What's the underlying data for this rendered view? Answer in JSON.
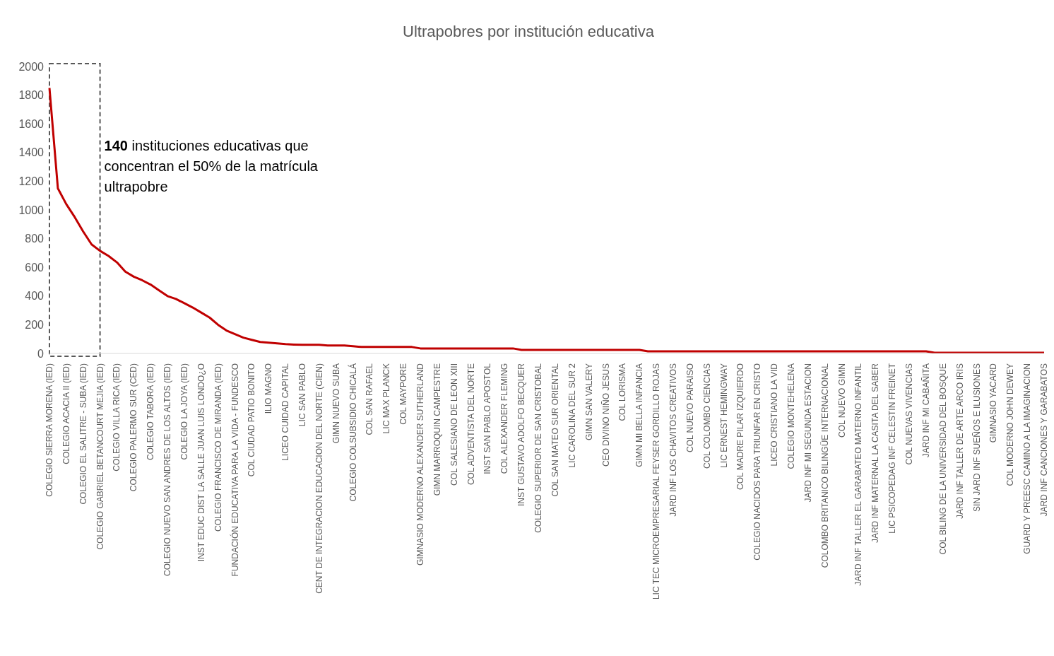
{
  "chart_data": {
    "type": "line",
    "title": "Ultrapobres por institución educativa",
    "categories": [
      "COLEGIO SIERRA MORENA (IED)",
      null,
      "COLEGIO ACACIA II (IED)",
      null,
      "COLEGIO EL SALITRE - SUBA (IED)",
      null,
      "COLEGIO GABRIEL BETANCOURT MEJIA (IED)",
      null,
      "COLEGIO VILLA RICA (IED)",
      null,
      "COLEGIO PALERMO SUR (CED)",
      null,
      "COLEGIO TABORA (IED)",
      null,
      "COLEGIO NUEVO SAN ANDRES DE LOS ALTOS (IED)",
      null,
      "COLEGIO LA JOYA (IED)",
      null,
      "INST EDUC DIST LA SALLE JUAN LUIS LONDO¿O",
      null,
      "COLEGIO FRANCISCO DE MIRANDA (IED)",
      null,
      "FUNDACIÓN EDUCATIVA PARA LA VIDA - FUNDESCO",
      null,
      "COL CIUDAD PATIO BONITO",
      null,
      "ILIO MAGNO",
      null,
      "LICEO CUIDAD CAPITAL",
      null,
      "LIC SAN PABLO",
      null,
      "CENT DE INTEGRACION EDUCACION DEL NORTE (CIEN)",
      null,
      "GIMN NUEVO SUBA",
      null,
      "COLEGIO COLSUBSIDIO CHICALÁ",
      null,
      "COL SAN RAFAEL",
      null,
      "LIC MAX PLANCK",
      null,
      "COL MAYPORE",
      null,
      "GIMNASIO MODERNO ALEXANDER SUTHERLAND",
      null,
      "GIMN MARROQUIN CAMPESTRE",
      null,
      "COL SALESIANO DE LEON XIII",
      null,
      "COL ADVENTISTA DEL NORTE",
      null,
      "INST SAN PABLO APOSTOL",
      null,
      "COL ALEXANDER FLEMING",
      null,
      "INST GUSTAVO ADOLFO BECQUER",
      null,
      "COLEGIO SUPERIOR DE SAN CRISTOBAL",
      null,
      "COL SAN MATEO SUR ORIENTAL",
      null,
      "LIC CAROLINA DEL SUR 2",
      null,
      "GIMN SAN VALERY",
      null,
      "CEO DIVINO NIÑO JESUS",
      null,
      "COL LORISMA",
      null,
      "GIMN MI BELLA INFANCIA",
      null,
      "LIC TEC MICROEMPRESARIAL FEYSER GORDILLO ROJAS",
      null,
      "JARD INF LOS CHAVITOS CREATIVOS",
      null,
      "COL NUEVO PARAISO",
      null,
      "COL COLOMBO CIENCIAS",
      null,
      "LIC ERNEST HEMINGWAY",
      null,
      "COL MADRE PILAR IZQUIERDO",
      null,
      "COLEGIO NACIDOS PARA TRIUNFAR EN CRISTO",
      null,
      "LICEO CRISTIANO LA VID",
      null,
      "COLEGIO MONTEHELENA",
      null,
      "JARD INF MI SEGUNDA ESTACION",
      null,
      "COLOMBO BRITANICO BILINGÜE INTERNACIONAL",
      null,
      "COL NUEVO GIMN",
      null,
      "JARD INF TALLER EL GARABATEO MATERNO INFANTIL",
      null,
      "JARD INF MATERNAL LA CASITA DEL SABER",
      null,
      "LIC PSICOPEDAG INF CELESTIN FREINET",
      null,
      "COL NUEVAS VIVENCIAS",
      null,
      "JARD INF MI CABAÑITA",
      null,
      "COL BILING DE LA UNIVERSIDAD DEL BOSQUE",
      null,
      "JARD INF TALLER DE ARTE ARCO IRIS",
      null,
      "SIN JARD INF SUEÑOS E ILUSIONES",
      null,
      "GIMNASIO YACARD",
      null,
      "COL MODERNO JOHN DEWEY",
      null,
      "GUARD Y PREESC CAMINO A LA IMAGINACION",
      null,
      "JARD INF CANCIONES Y GARABATOS"
    ],
    "series": [
      {
        "color": "#c00000",
        "values": [
          1850,
          1150,
          1040,
          950,
          850,
          760,
          715,
          680,
          635,
          570,
          535,
          510,
          480,
          440,
          400,
          380,
          350,
          320,
          285,
          250,
          200,
          160,
          135,
          110,
          95,
          80,
          75,
          70,
          65,
          62,
          60,
          60,
          60,
          55,
          55,
          55,
          50,
          45,
          45,
          45,
          45,
          45,
          45,
          45,
          35,
          35,
          35,
          35,
          35,
          35,
          35,
          35,
          35,
          35,
          35,
          35,
          25,
          25,
          25,
          25,
          25,
          25,
          25,
          25,
          25,
          25,
          25,
          25,
          25,
          25,
          25,
          15,
          15,
          15,
          15,
          15,
          15,
          15,
          15,
          15,
          15,
          15,
          15,
          15,
          15,
          15,
          15,
          15,
          15,
          15,
          15,
          15,
          15,
          15,
          15,
          15,
          15,
          15,
          15,
          15,
          15,
          15,
          15,
          15,
          15,
          5,
          5,
          5,
          5,
          5,
          5,
          5,
          5,
          5,
          5,
          5,
          5,
          5,
          5
        ]
      }
    ],
    "ylim": [
      0,
      2000
    ],
    "yticks": [
      0,
      200,
      400,
      600,
      800,
      1000,
      1200,
      1400,
      1600,
      1800,
      2000
    ],
    "grid": false,
    "legend": false,
    "marker": "none",
    "line_style": "solid",
    "annotations": [
      "140 instituciones educativas que concentran el 50% de la matrícula ultrapobre"
    ]
  }
}
